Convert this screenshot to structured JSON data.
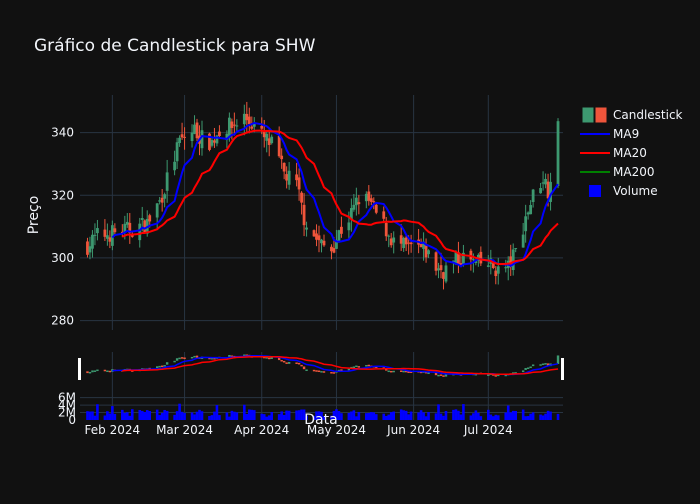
{
  "chart_data": {
    "type": "candlestick",
    "title": "Gráfico de Candlestick para SHW",
    "xlabel": "Data",
    "ylabel": "Preço",
    "x_range": [
      "2024-01-19",
      "2024-07-31"
    ],
    "ylim": [
      277,
      352
    ],
    "volume_ylim": [
      0,
      7500000
    ],
    "y_ticks": [
      280,
      300,
      320,
      340
    ],
    "volume_ticks": [
      0,
      2000000,
      4000000,
      6000000
    ],
    "volume_tick_labels": [
      "0",
      "2M",
      "4M",
      "6M"
    ],
    "x_ticks": [
      "2024-02-01",
      "2024-03-01",
      "2024-04-01",
      "2024-05-01",
      "2024-06-01",
      "2024-07-01"
    ],
    "x_tick_labels": [
      "Feb 2024",
      "Mar 2024",
      "Apr 2024",
      "May 2024",
      "Jun 2024",
      "Jul 2024"
    ],
    "grid": true,
    "legend_position": "top-right",
    "colors": {
      "background": "#111111",
      "grid": "#283442",
      "text": "#f2f5fa",
      "increasing": "#3d9970",
      "decreasing": "#ef553b",
      "ma9": "#0000ff",
      "ma20": "#ff0000",
      "ma200": "#008000",
      "volume": "#0000ff"
    },
    "legend": [
      {
        "name": "Candlestick",
        "kind": "candle"
      },
      {
        "name": "MA9",
        "kind": "line",
        "color": "#0000ff"
      },
      {
        "name": "MA20",
        "kind": "line",
        "color": "#ff0000"
      },
      {
        "name": "MA200",
        "kind": "line",
        "color": "#008000"
      },
      {
        "name": "Volume",
        "kind": "bar",
        "color": "#0000ff"
      }
    ],
    "anchors": [
      [
        "2024-01-22",
        304
      ],
      [
        "2024-01-26",
        307
      ],
      [
        "2024-02-01",
        308
      ],
      [
        "2024-02-08",
        309
      ],
      [
        "2024-02-15",
        311
      ],
      [
        "2024-02-20",
        318
      ],
      [
        "2024-02-23",
        325
      ],
      [
        "2024-02-28",
        337
      ],
      [
        "2024-03-05",
        341
      ],
      [
        "2024-03-08",
        338
      ],
      [
        "2024-03-12",
        337
      ],
      [
        "2024-03-15",
        341
      ],
      [
        "2024-03-20",
        342
      ],
      [
        "2024-03-25",
        345
      ],
      [
        "2024-03-28",
        343
      ],
      [
        "2024-04-02",
        338
      ],
      [
        "2024-04-05",
        336
      ],
      [
        "2024-04-10",
        327
      ],
      [
        "2024-04-15",
        323
      ],
      [
        "2024-04-18",
        313
      ],
      [
        "2024-04-22",
        307
      ],
      [
        "2024-04-25",
        304
      ],
      [
        "2024-04-29",
        303
      ],
      [
        "2024-05-02",
        308
      ],
      [
        "2024-05-07",
        314
      ],
      [
        "2024-05-10",
        319
      ],
      [
        "2024-05-14",
        318
      ],
      [
        "2024-05-17",
        314
      ],
      [
        "2024-05-21",
        309
      ],
      [
        "2024-05-24",
        305
      ],
      [
        "2024-05-29",
        303
      ],
      [
        "2024-06-03",
        303
      ],
      [
        "2024-06-06",
        302
      ],
      [
        "2024-06-10",
        297
      ],
      [
        "2024-06-13",
        296
      ],
      [
        "2024-06-18",
        299
      ],
      [
        "2024-06-21",
        300
      ],
      [
        "2024-06-26",
        298
      ],
      [
        "2024-07-01",
        298
      ],
      [
        "2024-07-05",
        296
      ],
      [
        "2024-07-09",
        297
      ],
      [
        "2024-07-12",
        302
      ],
      [
        "2024-07-16",
        313
      ],
      [
        "2024-07-19",
        320
      ],
      [
        "2024-07-23",
        326
      ],
      [
        "2024-07-25",
        322
      ],
      [
        "2024-07-29",
        341
      ]
    ]
  }
}
